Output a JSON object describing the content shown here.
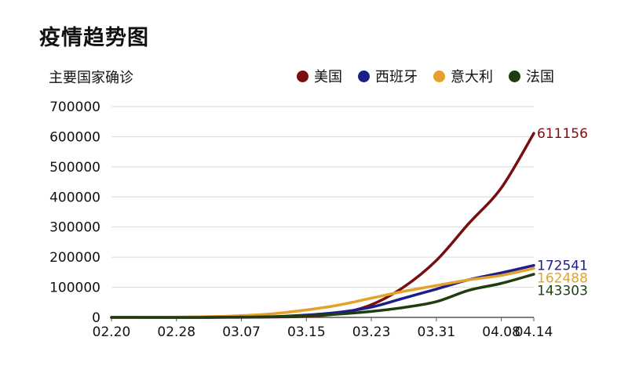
{
  "page": {
    "title": "疫情趋势图",
    "subtitle": "主要国家确诊"
  },
  "chart_data": {
    "type": "line",
    "title": "疫情趋势图",
    "ylabel": "主要国家确诊",
    "x": [
      "02.20",
      "02.24",
      "02.28",
      "03.03",
      "03.07",
      "03.11",
      "03.15",
      "03.19",
      "03.23",
      "03.27",
      "03.31",
      "04.04",
      "04.08",
      "04.14"
    ],
    "x_tick_labels": [
      "02.20",
      "02.28",
      "03.07",
      "03.15",
      "03.23",
      "03.31",
      "04.08",
      "04.14"
    ],
    "y_ticks": [
      0,
      100000,
      200000,
      300000,
      400000,
      500000,
      600000,
      700000
    ],
    "ylim": [
      0,
      700000
    ],
    "grid": "horizontal",
    "legend_position": "top-right",
    "series": [
      {
        "name": "美国",
        "color": "#7a0e0e",
        "values": [
          15,
          53,
          60,
          118,
          402,
          1281,
          3500,
          13000,
          42000,
          101000,
          189000,
          312000,
          430000,
          611156
        ],
        "end_label": "611156"
      },
      {
        "name": "西班牙",
        "color": "#1d1e8a",
        "values": [
          0,
          3,
          32,
          150,
          500,
          2200,
          7800,
          17000,
          34000,
          64000,
          94000,
          125000,
          148000,
          172541
        ],
        "end_label": "172541"
      },
      {
        "name": "意大利",
        "color": "#e6a12a",
        "values": [
          3,
          229,
          1128,
          2502,
          5883,
          12462,
          24747,
          41035,
          63927,
          86498,
          105792,
          124632,
          139422,
          162488
        ],
        "end_label": "162488"
      },
      {
        "name": "法国",
        "color": "#1f3e0f",
        "values": [
          12,
          12,
          57,
          212,
          949,
          2281,
          5423,
          10995,
          19856,
          32964,
          52128,
          89953,
          112950,
          143303
        ],
        "end_label": "143303"
      }
    ]
  }
}
